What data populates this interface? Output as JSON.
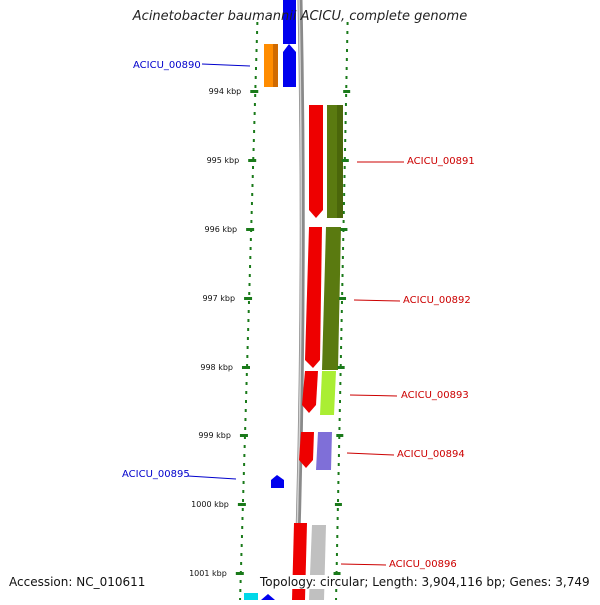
{
  "title": "Acinetobacter baumannii ACICU, complete genome",
  "footer": {
    "accession": "Accession: NC_010611",
    "summary": "Topology: circular; Length: 3,904,116 bp; Genes: 3,749"
  },
  "colors": {
    "forward_label": "#0000cc",
    "reverse_label": "#cc0000",
    "tick": "#1a7a1a",
    "backbone": "#999999"
  },
  "ticks": [
    "994 kbp",
    "995 kbp",
    "996 kbp",
    "997 kbp",
    "998 kbp",
    "999 kbp",
    "1000 kbp",
    "1001 kbp"
  ],
  "gene_labels": [
    {
      "text": "ACICU_00890",
      "strand": "forward"
    },
    {
      "text": "ACICU_00891",
      "strand": "reverse"
    },
    {
      "text": "ACICU_00892",
      "strand": "reverse"
    },
    {
      "text": "ACICU_00893",
      "strand": "reverse"
    },
    {
      "text": "ACICU_00894",
      "strand": "reverse"
    },
    {
      "text": "ACICU_00895",
      "strand": "forward"
    },
    {
      "text": "ACICU_00896",
      "strand": "reverse"
    }
  ]
}
